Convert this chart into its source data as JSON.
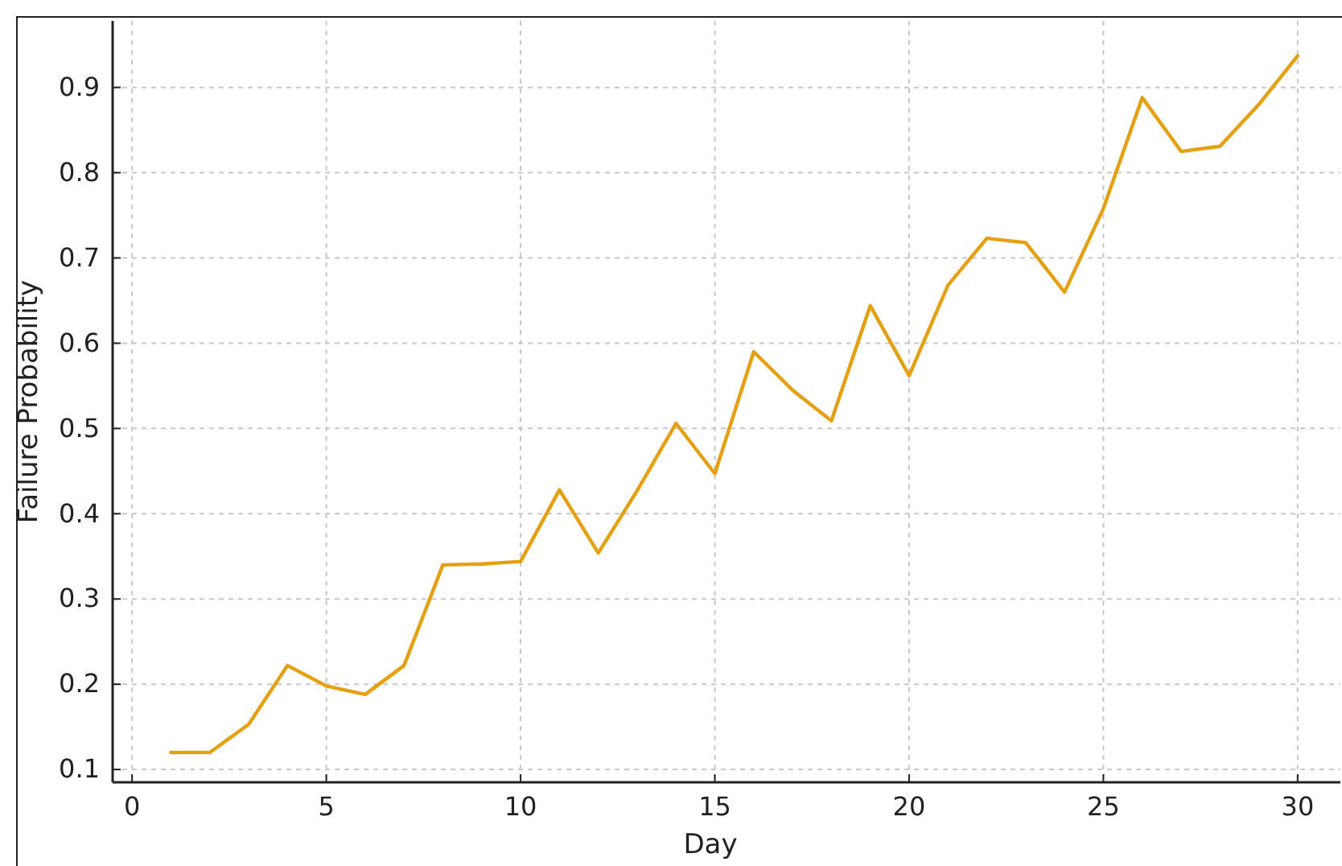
{
  "chart_data": {
    "type": "line",
    "xlabel": "Day",
    "ylabel": "Failure Probability",
    "x": [
      1,
      2,
      3,
      4,
      5,
      6,
      7,
      8,
      9,
      10,
      11,
      12,
      13,
      14,
      15,
      16,
      17,
      18,
      19,
      20,
      21,
      22,
      23,
      24,
      25,
      26,
      27,
      28,
      29,
      30
    ],
    "series": [
      {
        "color": "#e69f0f",
        "values": [
          0.12,
          0.12,
          0.153,
          0.222,
          0.198,
          0.188,
          0.222,
          0.34,
          0.341,
          0.344,
          0.428,
          0.354,
          0.427,
          0.506,
          0.447,
          0.59,
          0.545,
          0.509,
          0.644,
          0.562,
          0.668,
          0.723,
          0.718,
          0.66,
          0.758,
          0.888,
          0.825,
          0.831,
          0.88,
          0.937
        ]
      }
    ],
    "xlim": [
      -0.5,
      31.1
    ],
    "ylim": [
      0.085,
      0.978
    ],
    "xticks": [
      0,
      5,
      10,
      15,
      20,
      25,
      30
    ],
    "yticks": [
      {
        "value": 0.1,
        "label": "0.1"
      },
      {
        "value": 0.2,
        "label": "0.2"
      },
      {
        "value": 0.3,
        "label": "0.3"
      },
      {
        "value": 0.4,
        "label": "0.4"
      },
      {
        "value": 0.5,
        "label": "0.5"
      },
      {
        "value": 0.6,
        "label": "0.6"
      },
      {
        "value": 0.7,
        "label": "0.7"
      },
      {
        "value": 0.8,
        "label": "0.8"
      },
      {
        "value": 0.9,
        "label": "0.9"
      }
    ],
    "grid": true,
    "marker": "none",
    "line_style": "solid"
  }
}
